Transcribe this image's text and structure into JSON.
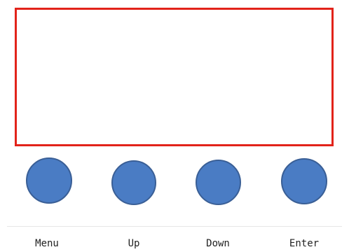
{
  "display": {
    "border_color": "#e2231a"
  },
  "buttons": [
    {
      "label": "Menu",
      "color": "#4a7cc4"
    },
    {
      "label": "Up",
      "color": "#4a7cc4"
    },
    {
      "label": "Down",
      "color": "#4a7cc4"
    },
    {
      "label": "Enter",
      "color": "#4a7cc4"
    }
  ]
}
